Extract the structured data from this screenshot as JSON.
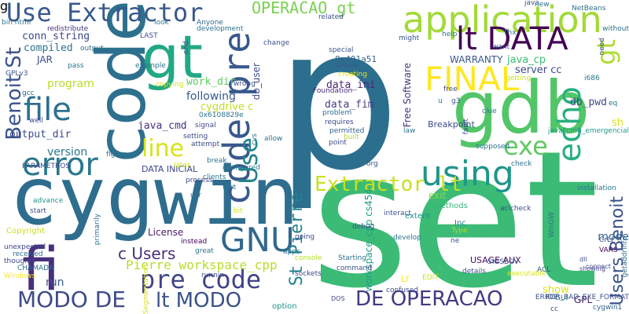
{
  "words": [
    {
      "text": "p",
      "color": "#2c6e8e",
      "vertical": false
    },
    {
      "text": "set",
      "color": "#3bbb75",
      "vertical": false
    },
    {
      "text": "cygwin",
      "color": "#2e6d8e",
      "vertical": false
    },
    {
      "text": "code",
      "color": "#2d708e",
      "vertical": true
    },
    {
      "text": "gdb",
      "color": "#52c569",
      "vertical": false
    },
    {
      "text": "gt",
      "color": "#22a884",
      "vertical": false
    },
    {
      "text": "fi",
      "color": "#472f7d",
      "vertical": false
    },
    {
      "text": "application",
      "color": "#a2da37",
      "vertical": false
    },
    {
      "text": "lt DATA",
      "color": "#440154",
      "vertical": false
    },
    {
      "text": "code pre",
      "color": "#38598c",
      "vertical": true
    },
    {
      "text": "Use Extractor",
      "color": "#38598c",
      "vertical": false
    },
    {
      "text": "FINAL",
      "color": "#fde725",
      "vertical": false
    },
    {
      "text": "error",
      "color": "#2a788e",
      "vertical": false
    },
    {
      "text": "using",
      "color": "#1f968b",
      "vertical": false
    },
    {
      "text": "file",
      "color": "#2d708e",
      "vertical": false
    },
    {
      "text": "echo",
      "color": "#29af7f",
      "vertical": true
    },
    {
      "text": "exe",
      "color": "#5ec962",
      "vertical": false
    },
    {
      "text": "GNU",
      "color": "#31688e",
      "vertical": false
    },
    {
      "text": "pre code",
      "color": "#414487",
      "vertical": false
    },
    {
      "text": "MODO DE",
      "color": "#3e4a89",
      "vertical": false
    },
    {
      "text": "DE OPERACAO",
      "color": "#443983",
      "vertical": false
    },
    {
      "text": "lt MODO",
      "color": "#3b528b",
      "vertical": false
    },
    {
      "text": "Extractor lt",
      "color": "#c8e020",
      "vertical": false
    },
    {
      "text": "line",
      "color": "#d8e219",
      "vertical": false
    },
    {
      "text": "Use",
      "color": "#25858e",
      "vertical": true
    },
    {
      "text": "gt",
      "color": "#addc30",
      "vertical": true
    },
    {
      "text": "Benoit St",
      "color": "#3b528b",
      "vertical": true
    },
    {
      "text": "Users Benoit",
      "color": "#3b528b",
      "vertical": true
    },
    {
      "text": "St Pierre",
      "color": "#26828e",
      "vertical": true
    },
    {
      "text": "OPERACAO gt",
      "color": "#7ad151",
      "vertical": false
    },
    {
      "text": "c Users",
      "color": "#46327e",
      "vertical": false
    },
    {
      "text": "Pierre workspace_cpp",
      "color": "#b5de2b",
      "vertical": false
    },
    {
      "text": "conn_string",
      "color": "#3e4989",
      "vertical": false
    },
    {
      "text": "compiled",
      "color": "#2b758e",
      "vertical": false
    },
    {
      "text": "program",
      "color": "#b8de29",
      "vertical": false
    },
    {
      "text": "work_dir",
      "color": "#5ec962",
      "vertical": false
    },
    {
      "text": "following",
      "color": "#38598c",
      "vertical": false
    },
    {
      "text": "java_cmd",
      "color": "#46337f",
      "vertical": false
    },
    {
      "text": "output_dir",
      "color": "#3e4c8a",
      "vertical": false
    },
    {
      "text": "version",
      "color": "#2a788e",
      "vertical": false
    },
    {
      "text": "DATA INICIAL",
      "color": "#3f4788",
      "vertical": false
    },
    {
      "text": "License",
      "color": "#48186a",
      "vertical": false
    },
    {
      "text": "data_ini",
      "color": "#482677",
      "vertical": false
    },
    {
      "text": "data_fim",
      "color": "#433e85",
      "vertical": false
    },
    {
      "text": "db_pwd",
      "color": "#3e4989",
      "vertical": false
    },
    {
      "text": "db_user",
      "color": "#3e4c8a",
      "vertical": true
    },
    {
      "text": "server cc",
      "color": "#3e4c8a",
      "vertical": false
    },
    {
      "text": "java_cp",
      "color": "#3bbb75",
      "vertical": false
    },
    {
      "text": "WARRANTY",
      "color": "#38598c",
      "vertical": false
    },
    {
      "text": "Free Software",
      "color": "#453781",
      "vertical": true
    },
    {
      "text": "Breakpoint",
      "color": "#3e4a89",
      "vertical": false
    },
    {
      "text": "workspace_cpp cs454",
      "color": "#1f9e89",
      "vertical": true
    },
    {
      "text": "exit",
      "color": "#8fd744",
      "vertical": false
    },
    {
      "text": "mode",
      "color": "#31688e",
      "vertical": false
    },
    {
      "text": "sh",
      "color": "#d8e219",
      "vertical": false
    },
    {
      "text": "cygdrive c",
      "color": "#c2df23",
      "vertical": false
    },
    {
      "text": "JAR",
      "color": "#3e4a89",
      "vertical": false
    },
    {
      "text": "Lf",
      "color": "#fde725",
      "vertical": false
    },
    {
      "text": "GPL",
      "color": "#482475",
      "vertical": false
    },
    {
      "text": "show",
      "color": "#d8e219",
      "vertical": false
    },
    {
      "text": "run",
      "color": "#38598c",
      "vertical": false
    },
    {
      "text": "USAGE AUX",
      "color": "#470e61",
      "vertical": false
    },
    {
      "text": "Copyright",
      "color": "#cde11d",
      "vertical": false
    },
    {
      "text": "methods",
      "color": "#35b779",
      "vertical": false
    },
    {
      "text": "extent",
      "color": "#20928c",
      "vertical": false
    },
    {
      "text": "Inc",
      "color": "#287c8e",
      "vertical": false
    },
    {
      "text": "0x401a51",
      "color": "#33638d",
      "vertical": false
    },
    {
      "text": "special",
      "color": "#3b528b",
      "vertical": false
    },
    {
      "text": "simple",
      "color": "#38598c",
      "vertical": false
    },
    {
      "text": "creating",
      "color": "#e5e419",
      "vertical": false
    },
    {
      "text": "Foundation",
      "color": "#482979",
      "vertical": false
    },
    {
      "text": "problem",
      "color": "#2d708e",
      "vertical": false
    },
    {
      "text": "requires",
      "color": "#3f4889",
      "vertical": false
    },
    {
      "text": "permitted",
      "color": "#355f8d",
      "vertical": false
    },
    {
      "text": "built",
      "color": "#b5de2b",
      "vertical": false
    },
    {
      "text": "point",
      "color": "#3e4c8a",
      "vertical": false
    },
    {
      "text": "instead",
      "color": "#440154",
      "vertical": false
    },
    {
      "text": "great",
      "color": "#2c728e",
      "vertical": false
    },
    {
      "text": "debug",
      "color": "#3b528b",
      "vertical": false
    },
    {
      "text": "interact",
      "color": "#3b528b",
      "vertical": false
    },
    {
      "text": "Starting",
      "color": "#2d708e",
      "vertical": false
    },
    {
      "text": "console",
      "color": "#b5de2b",
      "vertical": false
    },
    {
      "text": "sockets",
      "color": "#3e4c8a",
      "vertical": false
    },
    {
      "text": "confused",
      "color": "#3e4c8a",
      "vertical": false
    },
    {
      "text": "option",
      "color": "#1f968b",
      "vertical": false
    },
    {
      "text": "thoughts",
      "color": "#3e4989",
      "vertical": false
    },
    {
      "text": "received",
      "color": "#31688e",
      "vertical": false
    },
    {
      "text": "CHAMADA",
      "color": "#2c728e",
      "vertical": false
    },
    {
      "text": "Windows",
      "color": "#fde725",
      "vertical": false
    },
    {
      "text": "unexpected",
      "color": "#3f4788",
      "vertical": false
    },
    {
      "text": "PARAMETROS",
      "color": "#3e4989",
      "vertical": false
    },
    {
      "text": "redistribute",
      "color": "#46307e",
      "vertical": false
    },
    {
      "text": "GPLv3",
      "color": "#3b528b",
      "vertical": false
    },
    {
      "text": "java_cmd_emergencial",
      "color": "#1f9a8a",
      "vertical": false
    },
    {
      "text": "ERROR_BAD_EXE_FORMAT",
      "color": "#3d4e8a",
      "vertical": false
    },
    {
      "text": "cygwin1",
      "color": "#33638d",
      "vertical": false
    },
    {
      "text": "connect",
      "color": "#3e4989",
      "vertical": false
    },
    {
      "text": "VARS",
      "color": "#440154",
      "vertical": false
    },
    {
      "text": "CrLf",
      "color": "#3e4c8a",
      "vertical": false
    },
    {
      "text": "dll",
      "color": "#3b528b",
      "vertical": false
    },
    {
      "text": "showing",
      "color": "#3f4889",
      "vertical": false
    },
    {
      "text": "develop",
      "color": "#2b758e",
      "vertical": false
    },
    {
      "text": "Type",
      "color": "#addc30",
      "vertical": false
    },
    {
      "text": "details",
      "color": "#3e4c8a",
      "vertical": false
    },
    {
      "text": "command",
      "color": "#3b528b",
      "vertical": false
    },
    {
      "text": "EDIT",
      "color": "#cde11d",
      "vertical": false
    },
    {
      "text": "DOS",
      "color": "#3e4989",
      "vertical": false
    },
    {
      "text": "figure",
      "color": "#2c728e",
      "vertical": false
    },
    {
      "text": "setting",
      "color": "#3e4a89",
      "vertical": false
    },
    {
      "text": "attempt",
      "color": "#3e4c8a",
      "vertical": false
    },
    {
      "text": "clients",
      "color": "#2a788e",
      "vertical": false
    },
    {
      "text": "configured",
      "color": "#26828e",
      "vertical": false
    },
    {
      "text": "process",
      "color": "#3f4788",
      "vertical": false
    },
    {
      "text": "start",
      "color": "#3e4c8a",
      "vertical": false
    },
    {
      "text": "advance",
      "color": "#1f968b",
      "vertical": false
    },
    {
      "text": "signal",
      "color": "#3e4989",
      "vertical": false
    },
    {
      "text": "copying",
      "color": "#d0e11c",
      "vertical": false
    },
    {
      "text": "wrong",
      "color": "#3b528b",
      "vertical": false
    },
    {
      "text": "help",
      "color": "#2c728e",
      "vertical": false
    },
    {
      "text": "Thx",
      "color": "#2c728e",
      "vertical": false
    },
    {
      "text": "i686",
      "color": "#2a788e",
      "vertical": false
    },
    {
      "text": "eq",
      "color": "#2c728e",
      "vertical": false
    },
    {
      "text": "clue",
      "color": "#2c728e",
      "vertical": false
    },
    {
      "text": "getting",
      "color": "#cde11d",
      "vertical": false
    },
    {
      "text": "free",
      "color": "#3e4c8a",
      "vertical": false
    },
    {
      "text": "g3",
      "color": "#3b528b",
      "vertical": false
    },
    {
      "text": "want",
      "color": "#3b528b",
      "vertical": false
    },
    {
      "text": "might",
      "color": "#3b528b",
      "vertical": false
    },
    {
      "text": "change",
      "color": "#3b528b",
      "vertical": false
    },
    {
      "text": "look",
      "color": "#2a788e",
      "vertical": false
    },
    {
      "text": "LAST",
      "color": "#3e4c8a",
      "vertical": false
    },
    {
      "text": "development",
      "color": "#2c728e",
      "vertical": false
    },
    {
      "text": "Anyone",
      "color": "#31688e",
      "vertical": false
    },
    {
      "text": "related",
      "color": "#3b528b",
      "vertical": false
    },
    {
      "text": "bin html",
      "color": "#2c728e",
      "vertical": false
    },
    {
      "text": "output",
      "color": "#2c728e",
      "vertical": false
    },
    {
      "text": "pass",
      "color": "#2c728e",
      "vertical": false
    },
    {
      "text": "example",
      "color": "#2c728e",
      "vertical": false
    },
    {
      "text": "gcc",
      "color": "#31688e",
      "vertical": false
    },
    {
      "text": "well",
      "color": "#3e4c8a",
      "vertical": false
    },
    {
      "text": "0x6108829e",
      "color": "#2c728e",
      "vertical": false
    },
    {
      "text": "break",
      "color": "#2c728e",
      "vertical": false
    },
    {
      "text": "allow",
      "color": "#2c728e",
      "vertical": false
    },
    {
      "text": "org",
      "color": "#3b528b",
      "vertical": false
    },
    {
      "text": "law",
      "color": "#2a788e",
      "vertical": false
    },
    {
      "text": "check",
      "color": "#2c728e",
      "vertical": false
    },
    {
      "text": "installation",
      "color": "#2c728e",
      "vertical": false
    },
    {
      "text": "aclcheck",
      "color": "#3e4c8a",
      "vertical": false
    },
    {
      "text": "java",
      "color": "#3b528b",
      "vertical": false
    },
    {
      "text": "new",
      "color": "#2c728e",
      "vertical": false
    },
    {
      "text": "NetBeans",
      "color": "#2c728e",
      "vertical": false
    },
    {
      "text": "need",
      "color": "#3b528b",
      "vertical": true
    },
    {
      "text": "without",
      "color": "#2c728e",
      "vertical": false
    },
    {
      "text": "supposed",
      "color": "#2c728e",
      "vertical": false
    },
    {
      "text": "going",
      "color": "#3e4c8a",
      "vertical": false
    },
    {
      "text": "apps",
      "color": "#2c728e",
      "vertical": false
    },
    {
      "text": "test",
      "color": "#2c728e",
      "vertical": false
    },
    {
      "text": "usr",
      "color": "#2c728e",
      "vertical": false
    },
    {
      "text": "bit",
      "color": "#d8e219",
      "vertical": false
    },
    {
      "text": "cvs",
      "color": "#2c728e",
      "vertical": true
    },
    {
      "text": "ne",
      "color": "#3e4c8a",
      "vertical": false
    },
    {
      "text": "SIGSEGV",
      "color": "#3b528b",
      "vertical": false
    },
    {
      "text": "ACL",
      "color": "#3b528b",
      "vertical": false
    },
    {
      "text": "WinGW",
      "color": "#2c728e",
      "vertical": true
    },
    {
      "text": "getaddrinfo",
      "color": "#2c728e",
      "vertical": true
    },
    {
      "text": "GUI",
      "color": "#2c728e",
      "vertical": false
    },
    {
      "text": "IDE",
      "color": "#3b528b",
      "vertical": false
    },
    {
      "text": "cc",
      "color": "#3b528b",
      "vertical": false
    },
    {
      "text": "executable",
      "color": "#d8e219",
      "vertical": false
    },
    {
      "text": "end",
      "color": "#3b528b",
      "vertical": true
    },
    {
      "text": "primarily",
      "color": "#2c728e",
      "vertical": true
    },
    {
      "text": "Segmentation",
      "color": "#d8e219",
      "vertical": true
    },
    {
      "text": "later",
      "color": "#cde11d",
      "vertical": false
    },
    {
      "text": "runnin",
      "color": "#3e4c8a",
      "vertical": false
    },
    {
      "text": "u",
      "color": "#2c728e",
      "vertical": false
    },
    {
      "text": "fault",
      "color": "#3b528b",
      "vertical": true
    },
    {
      "text": "g",
      "color": "#3b528b",
      "vertical": false
    }
  ]
}
